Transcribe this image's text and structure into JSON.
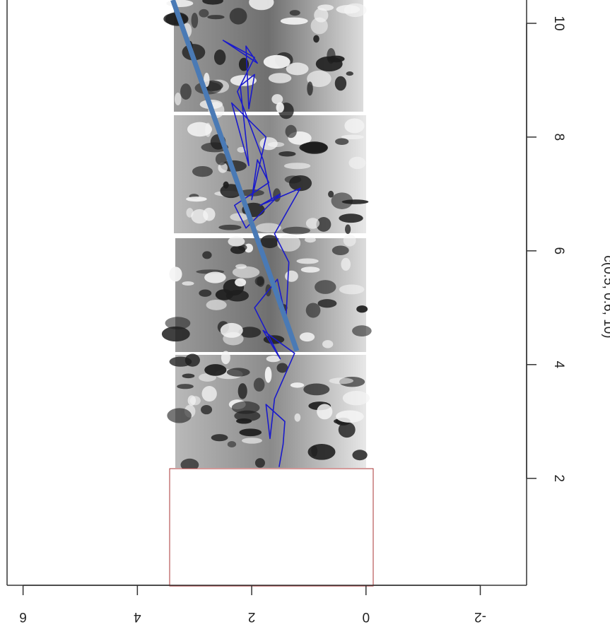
{
  "chart_data": {
    "type": "line",
    "xlabel": "c(0.5, 0.6, 10)",
    "xlim": [
      0.12,
      10.41
    ],
    "ylim": [
      -2.81,
      6.28
    ],
    "xticks": [
      2,
      4,
      6,
      8,
      10
    ],
    "yticks": [
      -2,
      0,
      2,
      4,
      6
    ],
    "series": [
      {
        "color": "#1a1acc",
        "width": 1.6,
        "x": [
          2.2,
          2.6,
          3.0,
          3.3,
          2.7,
          3.4,
          4.2,
          4.6,
          4.1,
          5.0,
          5.5,
          4.8,
          5.8,
          6.3,
          7.1,
          6.8,
          7.0,
          6.4,
          6.8,
          7.2,
          7.6,
          6.9,
          8.0,
          8.6,
          7.5,
          8.9,
          9.1,
          8.5,
          9.6,
          9.3,
          9.7,
          9.4,
          8.8,
          7.6,
          6.9
        ],
        "values": [
          1.52,
          1.45,
          1.42,
          1.75,
          1.68,
          1.6,
          1.25,
          1.8,
          1.5,
          1.95,
          1.55,
          1.4,
          1.35,
          1.6,
          1.15,
          1.85,
          1.5,
          2.1,
          2.3,
          1.7,
          1.9,
          2.0,
          1.75,
          2.35,
          2.05,
          2.2,
          1.95,
          2.05,
          2.1,
          1.9,
          2.5,
          1.95,
          2.25,
          1.8,
          1.65
        ]
      },
      {
        "color": "#4a7ab5",
        "width": 7,
        "x": [
          4.24,
          10.41
        ],
        "values": [
          1.21,
          3.38
        ]
      }
    ]
  }
}
